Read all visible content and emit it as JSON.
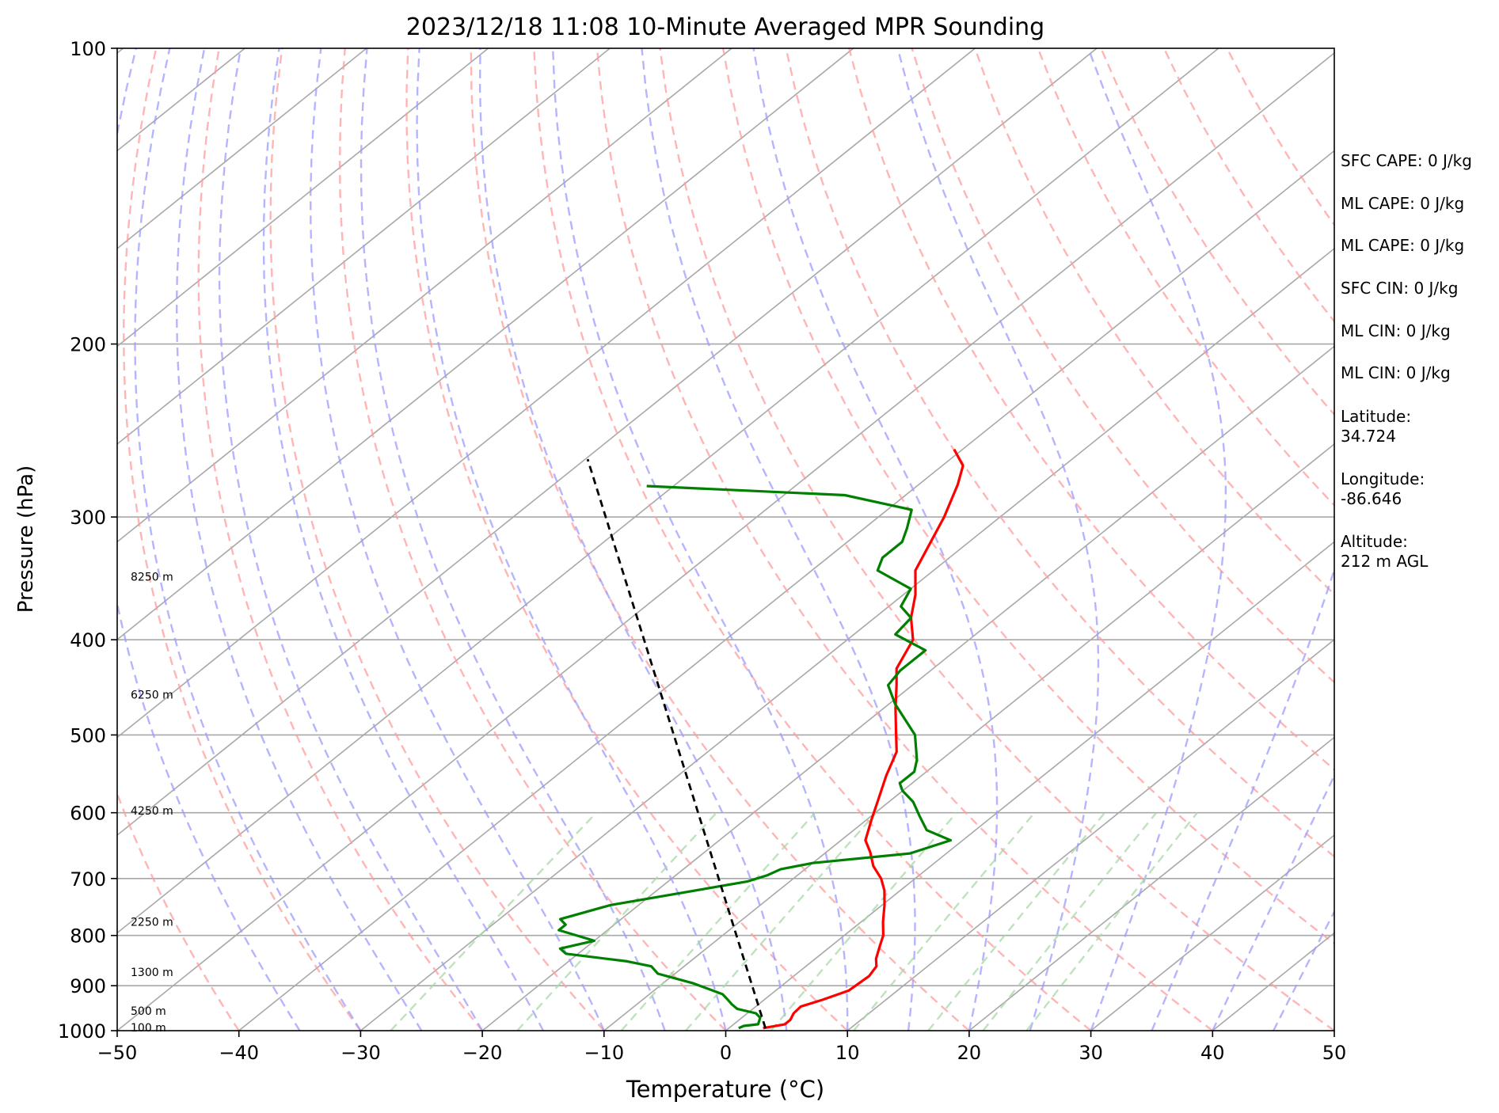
{
  "chart_data": {
    "type": "line",
    "title": "2023/12/18 11:08 10-Minute Averaged MPR Sounding",
    "xlabel": "Temperature (°C)",
    "ylabel": "Pressure (hPa)",
    "xlim": [
      -50,
      50
    ],
    "ylim": [
      1000,
      100
    ],
    "y_scale": "log",
    "grid": true,
    "x_ticks": [
      "−50",
      "−40",
      "−30",
      "−20",
      "−10",
      "0",
      "10",
      "20",
      "30",
      "40",
      "50"
    ],
    "y_ticks": [
      "100",
      "200",
      "300",
      "400",
      "500",
      "600",
      "700",
      "800",
      "900",
      "1000"
    ],
    "height_labels": [
      {
        "text": "8250 m",
        "p": 345
      },
      {
        "text": "6250 m",
        "p": 455
      },
      {
        "text": "4250 m",
        "p": 597
      },
      {
        "text": "2250 m",
        "p": 775
      },
      {
        "text": "1300 m",
        "p": 872
      },
      {
        "text": "500 m",
        "p": 955
      },
      {
        "text": "100 m",
        "p": 993
      }
    ],
    "series": [
      {
        "color": "#ff0000",
        "points": [
          [
            2.8,
            994
          ],
          [
            4.2,
            985
          ],
          [
            4.2,
            975
          ],
          [
            3.8,
            960
          ],
          [
            3.7,
            945
          ],
          [
            4.8,
            930
          ],
          [
            6.0,
            910
          ],
          [
            6.2,
            880
          ],
          [
            5.8,
            860
          ],
          [
            5.0,
            845
          ],
          [
            4.0,
            820
          ],
          [
            3.2,
            800
          ],
          [
            1.8,
            775
          ],
          [
            0.2,
            745
          ],
          [
            -1.3,
            720
          ],
          [
            -2.8,
            700
          ],
          [
            -4.7,
            680
          ],
          [
            -6.4,
            658
          ],
          [
            -8.0,
            640
          ],
          [
            -9.6,
            610
          ],
          [
            -11.2,
            580
          ],
          [
            -12.9,
            550
          ],
          [
            -14.5,
            520
          ],
          [
            -16.7,
            495
          ],
          [
            -19.0,
            470
          ],
          [
            -21.3,
            445
          ],
          [
            -23.0,
            428
          ],
          [
            -24.6,
            400
          ],
          [
            -27.0,
            380
          ],
          [
            -29.0,
            360
          ],
          [
            -31.5,
            340
          ],
          [
            -34.6,
            300
          ],
          [
            -36.8,
            278
          ],
          [
            -38.3,
            266
          ],
          [
            -40.7,
            256
          ]
        ]
      },
      {
        "color": "#008000",
        "points": [
          [
            0.8,
            994
          ],
          [
            1.0,
            989
          ],
          [
            2.0,
            985
          ],
          [
            1.5,
            970
          ],
          [
            0.7,
            960
          ],
          [
            -1.3,
            950
          ],
          [
            -2.2,
            940
          ],
          [
            -3.0,
            930
          ],
          [
            -4.0,
            918
          ],
          [
            -7.5,
            895
          ],
          [
            -11.4,
            875
          ],
          [
            -12.7,
            860
          ],
          [
            -15.2,
            850
          ],
          [
            -21.0,
            835
          ],
          [
            -22.0,
            825
          ],
          [
            -20.0,
            810
          ],
          [
            -24.0,
            790
          ],
          [
            -24.0,
            780
          ],
          [
            -25.0,
            770
          ],
          [
            -22.3,
            745
          ],
          [
            -13.5,
            705
          ],
          [
            -12.5,
            695
          ],
          [
            -12.0,
            685
          ],
          [
            -10.0,
            675
          ],
          [
            -3.0,
            660
          ],
          [
            -1.0,
            640
          ],
          [
            -4.0,
            625
          ],
          [
            -6.0,
            605
          ],
          [
            -8.0,
            585
          ],
          [
            -10.0,
            570
          ],
          [
            -11.0,
            560
          ],
          [
            -11.0,
            545
          ],
          [
            -12.0,
            530
          ],
          [
            -14.7,
            500
          ],
          [
            -19.5,
            465
          ],
          [
            -22.0,
            445
          ],
          [
            -22.5,
            430
          ],
          [
            -22.5,
            410
          ],
          [
            -26.6,
            395
          ],
          [
            -27.0,
            380
          ],
          [
            -29.0,
            370
          ],
          [
            -30.0,
            355
          ],
          [
            -34.6,
            340
          ],
          [
            -35.5,
            330
          ],
          [
            -35.5,
            318
          ],
          [
            -36.5,
            308
          ],
          [
            -38.0,
            295
          ],
          [
            -45.0,
            285
          ],
          [
            -62.2,
            279
          ]
        ]
      },
      {
        "color": "#000000",
        "style": "dashed",
        "points": [
          [
            3.0,
            994
          ],
          [
            -69.8,
            262
          ]
        ]
      }
    ],
    "reference_lines": {
      "dry_adiabats": "red dashed",
      "moist_adiabats": "blue dashed",
      "mixing_ratio": "green dashed",
      "isotherms": "gray solid"
    }
  },
  "info_panel": [
    "SFC CAPE: 0 J/kg",
    "ML CAPE: 0 J/kg",
    "ML CAPE: 0 J/kg",
    "SFC CIN: 0 J/kg",
    "ML CIN: 0 J/kg",
    "ML CIN: 0 J/kg",
    "Latitude:",
    "34.724",
    "Longitude:",
    "-86.646",
    "Altitude:",
    "212 m AGL"
  ]
}
